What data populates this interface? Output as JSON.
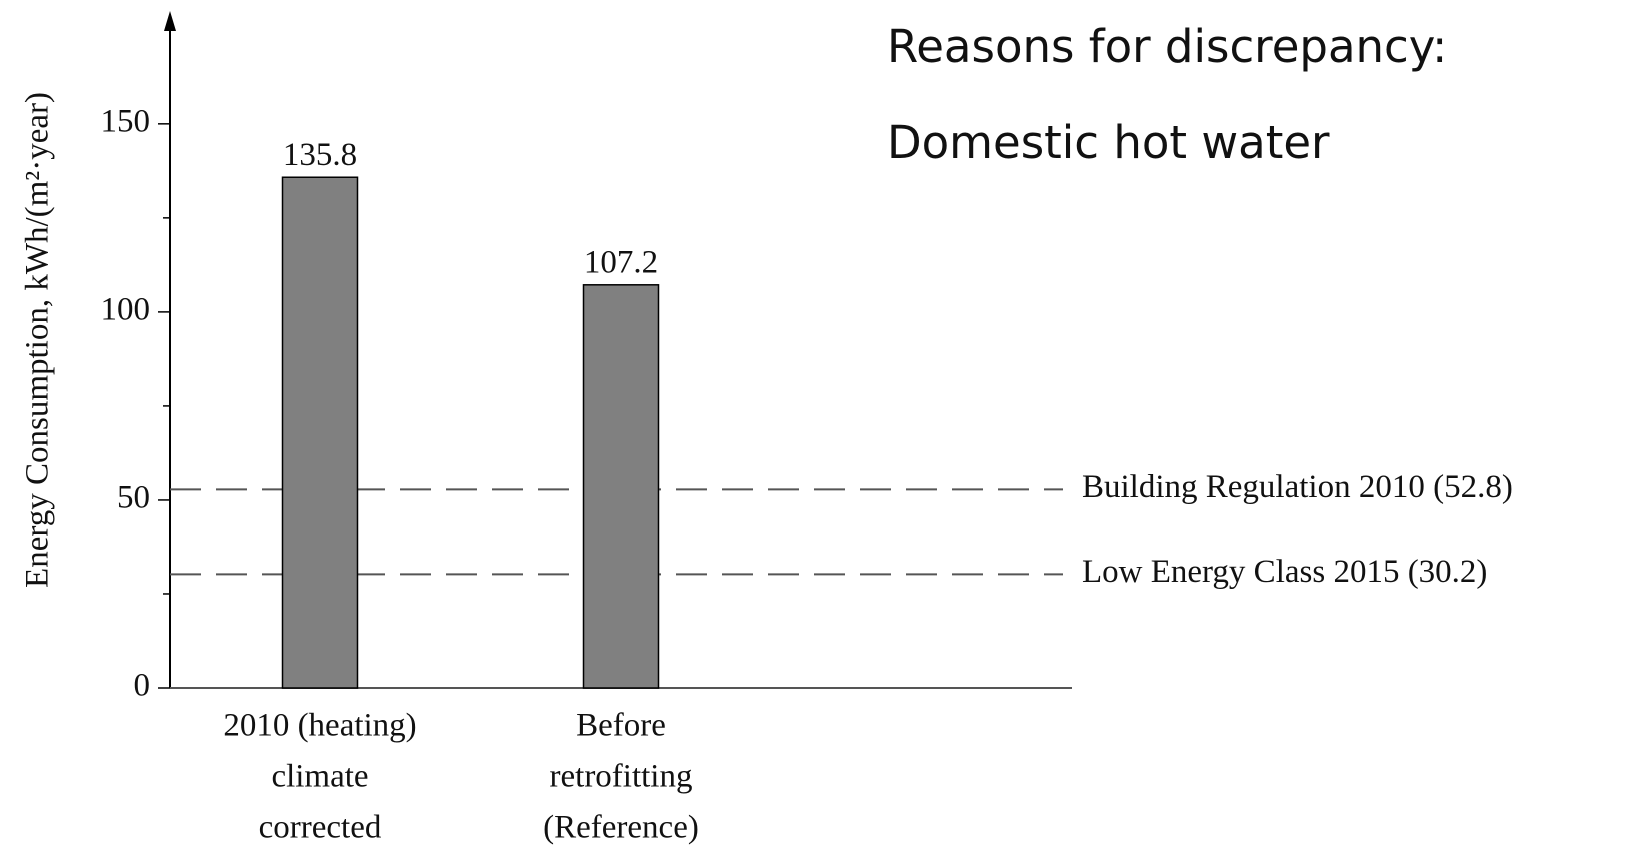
{
  "chart_data": {
    "type": "bar",
    "y_label": "Energy Consumption, kWh/(m²·year)",
    "categories": [
      [
        "2010 (heating)",
        "climate",
        "corrected"
      ],
      [
        "Before",
        "retrofitting",
        "(Reference)"
      ]
    ],
    "values": [
      135.8,
      107.2
    ],
    "color": "#808080",
    "ylim": [
      0,
      180
    ],
    "yticks": [
      0,
      50,
      100,
      150
    ],
    "minor_yticks": [
      25,
      75,
      125
    ],
    "reference_lines": [
      {
        "value": 52.8,
        "label": "Building Regulation 2010 (52.8)"
      },
      {
        "value": 30.2,
        "label": "Low Energy Class 2015 (30.2)"
      }
    ],
    "annotations": [
      "Reasons for discrepancy:",
      "Domestic hot water"
    ]
  }
}
